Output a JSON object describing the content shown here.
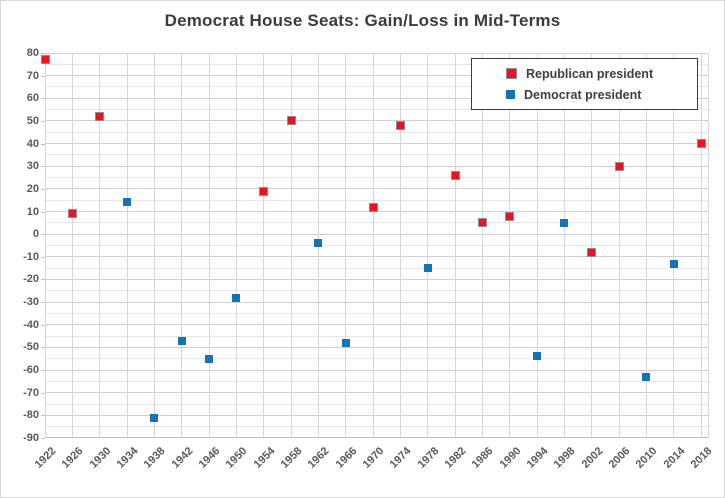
{
  "title": "Democrat House Seats: Gain/Loss in Mid-Terms",
  "legend": {
    "items": [
      {
        "label": "Republican president",
        "fill": "#e8151d",
        "border": "#9486a6"
      },
      {
        "label": "Democrat president",
        "fill": "#1273b5",
        "border": "#1273b5"
      }
    ]
  },
  "colors": {
    "republican_fill": "#e8151d",
    "republican_border": "#9486a6",
    "democrat_fill": "#1273b5",
    "title_text": "#3b3b3b",
    "axis_text": "#595959",
    "gridline_major": "#cfcfcf",
    "gridline_minor": "#e7e7e7"
  },
  "chart_data": {
    "type": "scatter",
    "title": "Democrat House Seats: Gain/Loss in Mid-Terms",
    "xlabel": "",
    "ylabel": "",
    "xlim": [
      1922,
      2018
    ],
    "ylim": [
      -90,
      80
    ],
    "ytick_step": 10,
    "yminor_step": 5,
    "grid": true,
    "legend_position": "top-right",
    "xticks": [
      1922,
      1926,
      1930,
      1934,
      1938,
      1942,
      1946,
      1950,
      1954,
      1958,
      1962,
      1966,
      1970,
      1974,
      1978,
      1982,
      1986,
      1990,
      1994,
      1998,
      2002,
      2006,
      2010,
      2014,
      2018
    ],
    "yticks": [
      80,
      70,
      60,
      50,
      40,
      30,
      20,
      10,
      0,
      -10,
      -20,
      -30,
      -40,
      -50,
      -60,
      -70,
      -80,
      -90
    ],
    "series": [
      {
        "name": "Republican president",
        "marker": "square",
        "color": "#e8151d",
        "points": [
          {
            "x": 1922,
            "y": 77
          },
          {
            "x": 1926,
            "y": 9
          },
          {
            "x": 1930,
            "y": 52
          },
          {
            "x": 1954,
            "y": 19
          },
          {
            "x": 1958,
            "y": 50
          },
          {
            "x": 1970,
            "y": 12
          },
          {
            "x": 1974,
            "y": 48
          },
          {
            "x": 1982,
            "y": 26
          },
          {
            "x": 1986,
            "y": 5
          },
          {
            "x": 1990,
            "y": 8
          },
          {
            "x": 2002,
            "y": -8
          },
          {
            "x": 2006,
            "y": 30
          },
          {
            "x": 2018,
            "y": 40
          }
        ]
      },
      {
        "name": "Democrat president",
        "marker": "square",
        "color": "#1273b5",
        "points": [
          {
            "x": 1934,
            "y": 14
          },
          {
            "x": 1938,
            "y": -81
          },
          {
            "x": 1942,
            "y": -47
          },
          {
            "x": 1946,
            "y": -55
          },
          {
            "x": 1950,
            "y": -28
          },
          {
            "x": 1962,
            "y": -4
          },
          {
            "x": 1966,
            "y": -48
          },
          {
            "x": 1978,
            "y": -15
          },
          {
            "x": 1994,
            "y": -54
          },
          {
            "x": 1998,
            "y": 5
          },
          {
            "x": 2010,
            "y": -63
          },
          {
            "x": 2014,
            "y": -13
          }
        ]
      }
    ]
  }
}
